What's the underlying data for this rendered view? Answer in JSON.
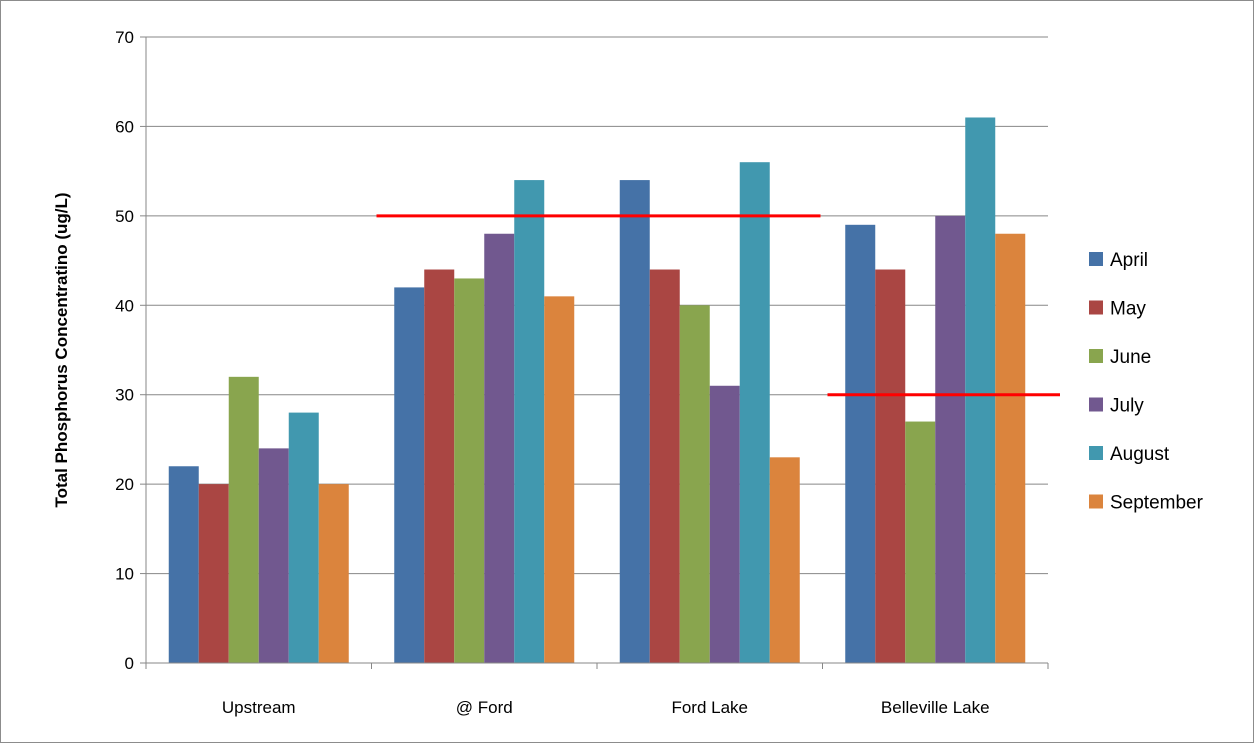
{
  "chart_data": {
    "type": "bar",
    "title": "",
    "xlabel": "",
    "ylabel": "Total Phosphorus Concentratino (ug/L)",
    "ylim": [
      0,
      70
    ],
    "yticks": [
      0,
      10,
      20,
      30,
      40,
      50,
      60,
      70
    ],
    "grid": true,
    "legend_position": "right",
    "categories": [
      "Upstream",
      "@ Ford",
      "Ford Lake",
      "Belleville Lake"
    ],
    "series": [
      {
        "name": "April",
        "color": "#4572a7",
        "values": [
          22,
          42,
          54,
          49
        ]
      },
      {
        "name": "May",
        "color": "#aa4643",
        "values": [
          20,
          44,
          44,
          44
        ]
      },
      {
        "name": "June",
        "color": "#89a54e",
        "values": [
          32,
          43,
          40,
          27
        ]
      },
      {
        "name": "July",
        "color": "#71588f",
        "values": [
          24,
          48,
          31,
          50
        ]
      },
      {
        "name": "August",
        "color": "#4198af",
        "values": [
          28,
          54,
          56,
          61
        ]
      },
      {
        "name": "September",
        "color": "#db843d",
        "values": [
          20,
          41,
          23,
          48
        ]
      }
    ],
    "reference_lines": [
      {
        "value": 50,
        "color": "#ff0000",
        "category_from": 1,
        "category_to": 2
      },
      {
        "value": 30,
        "color": "#ff0000",
        "category_from": 3,
        "category_to": 3
      }
    ]
  }
}
